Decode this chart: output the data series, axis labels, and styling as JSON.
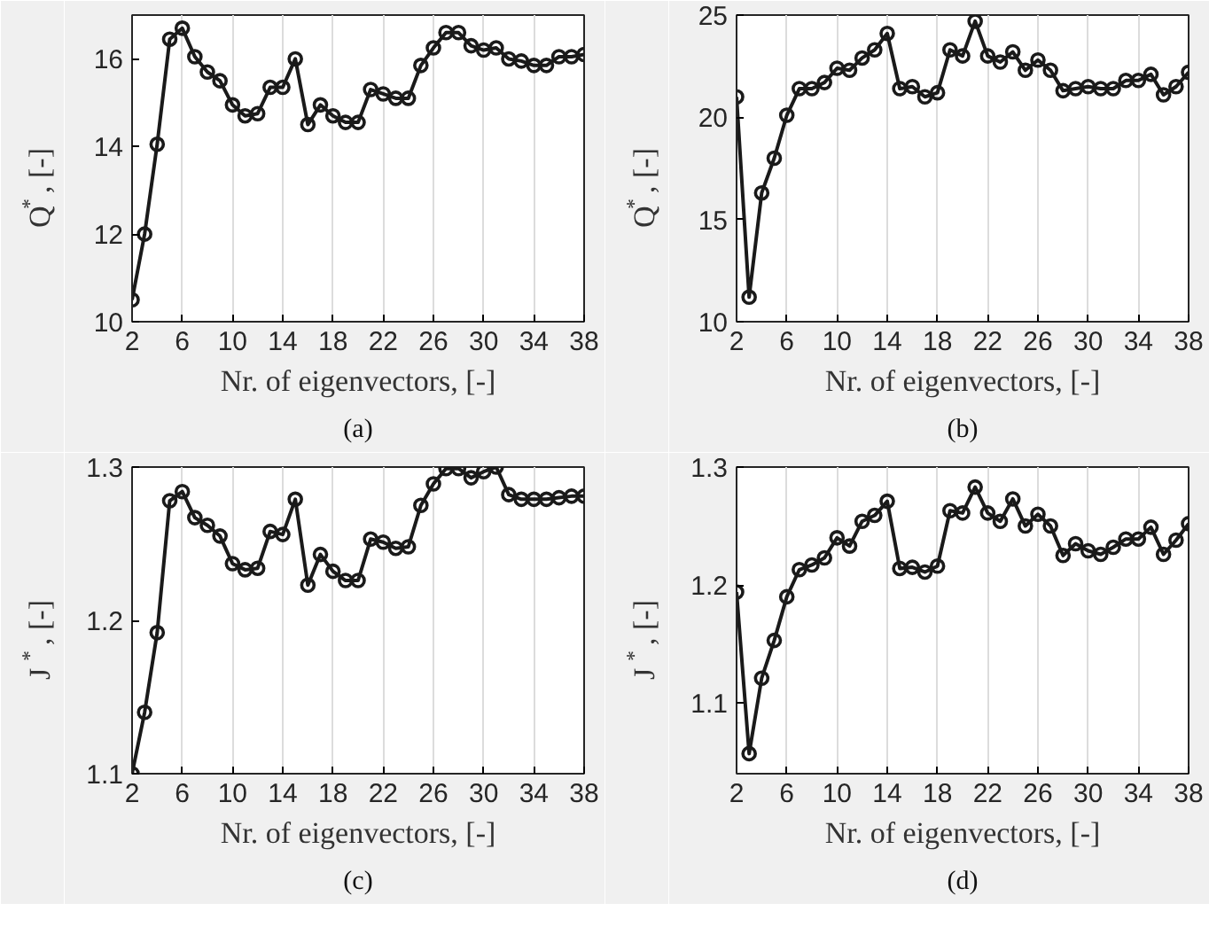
{
  "chart_data": [
    {
      "type": "line",
      "xlabel": "Nr. of eigenvectors, [-]",
      "ylabel": "Q$^{*}$, [-]",
      "annotations": [
        "(a)"
      ],
      "x": [
        2,
        3,
        4,
        5,
        6,
        7,
        8,
        9,
        10,
        11,
        12,
        13,
        14,
        15,
        16,
        17,
        18,
        19,
        20,
        21,
        22,
        23,
        24,
        25,
        26,
        27,
        28,
        29,
        30,
        31,
        32,
        33,
        34,
        35,
        36,
        37,
        38
      ],
      "series": [
        {
          "color": "#1a1a1a",
          "values": [
            10.5,
            12.0,
            14.05,
            16.45,
            16.7,
            16.05,
            15.7,
            15.5,
            14.95,
            14.7,
            14.75,
            15.35,
            15.35,
            16.0,
            14.5,
            14.95,
            14.7,
            14.55,
            14.55,
            15.3,
            15.2,
            15.1,
            15.1,
            15.85,
            16.25,
            16.6,
            16.6,
            16.3,
            16.2,
            16.25,
            16.0,
            15.95,
            15.85,
            15.85,
            16.05,
            16.05,
            16.1
          ]
        }
      ],
      "xlim": [
        2,
        38
      ],
      "ylim": [
        10,
        17
      ],
      "xticks": [
        2,
        6,
        10,
        14,
        18,
        22,
        26,
        30,
        34,
        38
      ],
      "yticks": [
        10,
        12,
        14,
        16
      ],
      "grid": "x",
      "marker": "circle",
      "line_style": "solid"
    },
    {
      "type": "line",
      "xlabel": "Nr. of eigenvectors, [-]",
      "ylabel": "Q$^{*}$, [-]",
      "annotations": [
        "(b)"
      ],
      "x": [
        2,
        3,
        4,
        5,
        6,
        7,
        8,
        9,
        10,
        11,
        12,
        13,
        14,
        15,
        16,
        17,
        18,
        19,
        20,
        21,
        22,
        23,
        24,
        25,
        26,
        27,
        28,
        29,
        30,
        31,
        32,
        33,
        34,
        35,
        36,
        37,
        38
      ],
      "series": [
        {
          "color": "#1a1a1a",
          "values": [
            21.0,
            11.2,
            16.3,
            18.0,
            20.1,
            21.4,
            21.4,
            21.7,
            22.4,
            22.3,
            22.9,
            23.3,
            24.1,
            21.4,
            21.5,
            21.0,
            21.2,
            23.3,
            23.0,
            24.7,
            23.0,
            22.7,
            23.2,
            22.3,
            22.8,
            22.3,
            21.3,
            21.4,
            21.5,
            21.4,
            21.4,
            21.8,
            21.8,
            22.1,
            21.1,
            21.5,
            22.2
          ]
        }
      ],
      "xlim": [
        2,
        38
      ],
      "ylim": [
        10,
        25
      ],
      "xticks": [
        2,
        6,
        10,
        14,
        18,
        22,
        26,
        30,
        34,
        38
      ],
      "yticks": [
        10,
        15,
        20,
        25
      ],
      "grid": "x",
      "marker": "circle",
      "line_style": "solid"
    },
    {
      "type": "line",
      "xlabel": "Nr. of eigenvectors, [-]",
      "ylabel": "J$^{*}$, [-]",
      "annotations": [
        "(c)"
      ],
      "x": [
        2,
        3,
        4,
        5,
        6,
        7,
        8,
        9,
        10,
        11,
        12,
        13,
        14,
        15,
        16,
        17,
        18,
        19,
        20,
        21,
        22,
        23,
        24,
        25,
        26,
        27,
        28,
        29,
        30,
        31,
        32,
        33,
        34,
        35,
        36,
        37,
        38
      ],
      "series": [
        {
          "color": "#1a1a1a",
          "values": [
            1.1,
            1.14,
            1.192,
            1.278,
            1.284,
            1.267,
            1.262,
            1.255,
            1.237,
            1.233,
            1.234,
            1.258,
            1.256,
            1.279,
            1.223,
            1.243,
            1.232,
            1.226,
            1.226,
            1.253,
            1.251,
            1.247,
            1.248,
            1.275,
            1.289,
            1.299,
            1.299,
            1.293,
            1.297,
            1.3,
            1.282,
            1.279,
            1.279,
            1.279,
            1.28,
            1.281,
            1.281
          ]
        }
      ],
      "xlim": [
        2,
        38
      ],
      "ylim": [
        1.1,
        1.3
      ],
      "xticks": [
        2,
        6,
        10,
        14,
        18,
        22,
        26,
        30,
        34,
        38
      ],
      "yticks": [
        1.1,
        1.2,
        1.3
      ],
      "grid": "x",
      "marker": "circle",
      "line_style": "solid"
    },
    {
      "type": "line",
      "xlabel": "Nr. of eigenvectors, [-]",
      "ylabel": "J$^{*}$, [-]",
      "annotations": [
        "(d)"
      ],
      "x": [
        2,
        3,
        4,
        5,
        6,
        7,
        8,
        9,
        10,
        11,
        12,
        13,
        14,
        15,
        16,
        17,
        18,
        19,
        20,
        21,
        22,
        23,
        24,
        25,
        26,
        27,
        28,
        29,
        30,
        31,
        32,
        33,
        34,
        35,
        36,
        37,
        38
      ],
      "series": [
        {
          "color": "#1a1a1a",
          "values": [
            1.194,
            1.057,
            1.121,
            1.153,
            1.19,
            1.213,
            1.217,
            1.223,
            1.24,
            1.233,
            1.254,
            1.259,
            1.271,
            1.214,
            1.215,
            1.211,
            1.216,
            1.263,
            1.261,
            1.283,
            1.261,
            1.254,
            1.273,
            1.25,
            1.26,
            1.25,
            1.225,
            1.235,
            1.229,
            1.226,
            1.232,
            1.239,
            1.239,
            1.249,
            1.226,
            1.238,
            1.252
          ]
        }
      ],
      "xlim": [
        2,
        38
      ],
      "ylim": [
        1.04,
        1.3
      ],
      "xticks": [
        2,
        6,
        10,
        14,
        18,
        22,
        26,
        30,
        34,
        38
      ],
      "yticks": [
        1.1,
        1.2,
        1.3
      ],
      "grid": "x",
      "marker": "circle",
      "line_style": "solid"
    }
  ]
}
